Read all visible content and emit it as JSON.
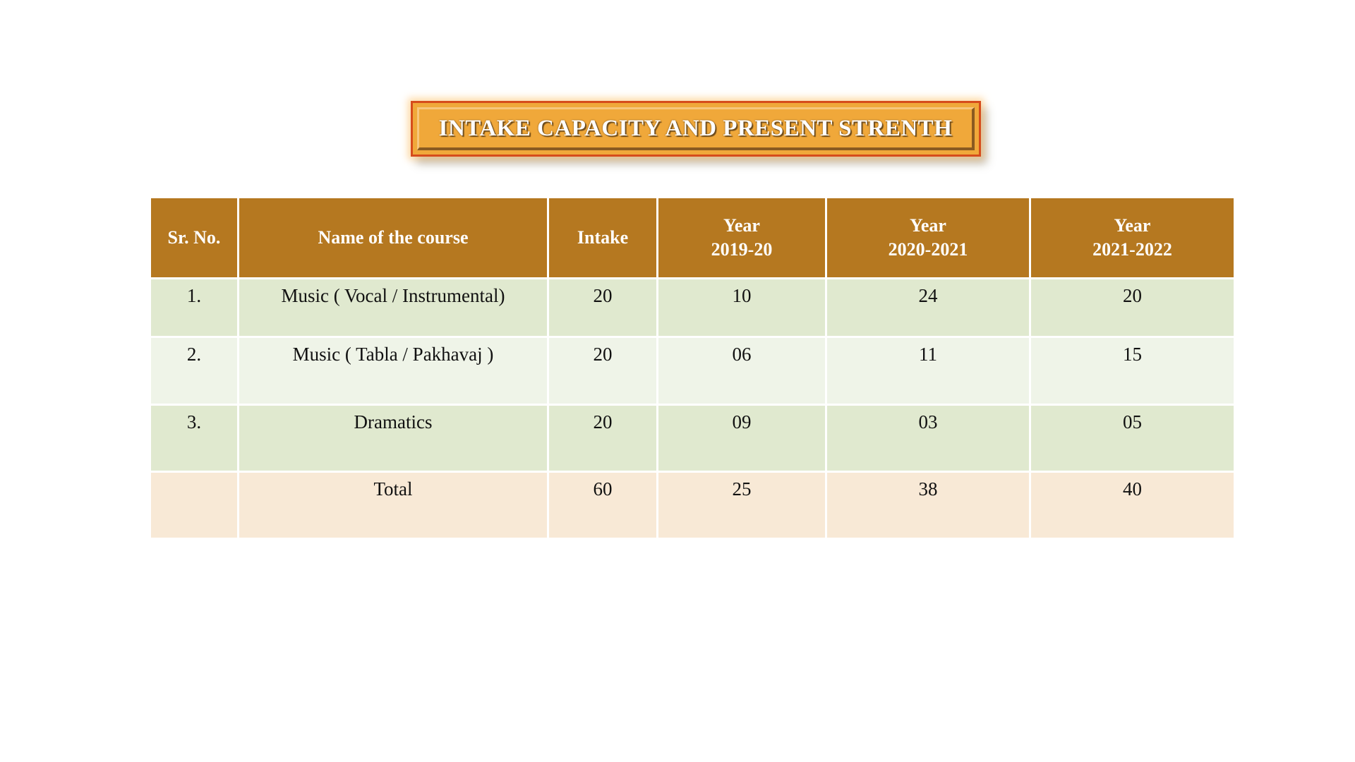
{
  "title": "INTAKE CAPACITY AND PRESENT STRENTH",
  "table": {
    "headers": [
      {
        "lines": [
          "Sr. No."
        ]
      },
      {
        "lines": [
          "Name of the course"
        ]
      },
      {
        "lines": [
          "Intake"
        ]
      },
      {
        "lines": [
          "Year",
          "2019-20"
        ]
      },
      {
        "lines": [
          "Year",
          "2020-2021"
        ]
      },
      {
        "lines": [
          "Year",
          "2021-2022"
        ]
      }
    ],
    "rows": [
      [
        "1.",
        "Music ( Vocal / Instrumental)",
        "20",
        "10",
        "24",
        "20"
      ],
      [
        "2.",
        "Music ( Tabla / Pakhavaj )",
        "20",
        "06",
        "11",
        "15"
      ],
      [
        "3.",
        "Dramatics",
        "20",
        "09",
        "03",
        "05"
      ],
      [
        "",
        "Total",
        "60",
        "25",
        "38",
        "40"
      ]
    ]
  },
  "colors": {
    "header_bg": "#b57820",
    "row_odd_bg": "#e0e9cf",
    "row_even_bg": "#eff4e8",
    "total_bg": "#f8e9d6",
    "title_bg": "#f0a83a",
    "title_border": "#d64c1c"
  }
}
